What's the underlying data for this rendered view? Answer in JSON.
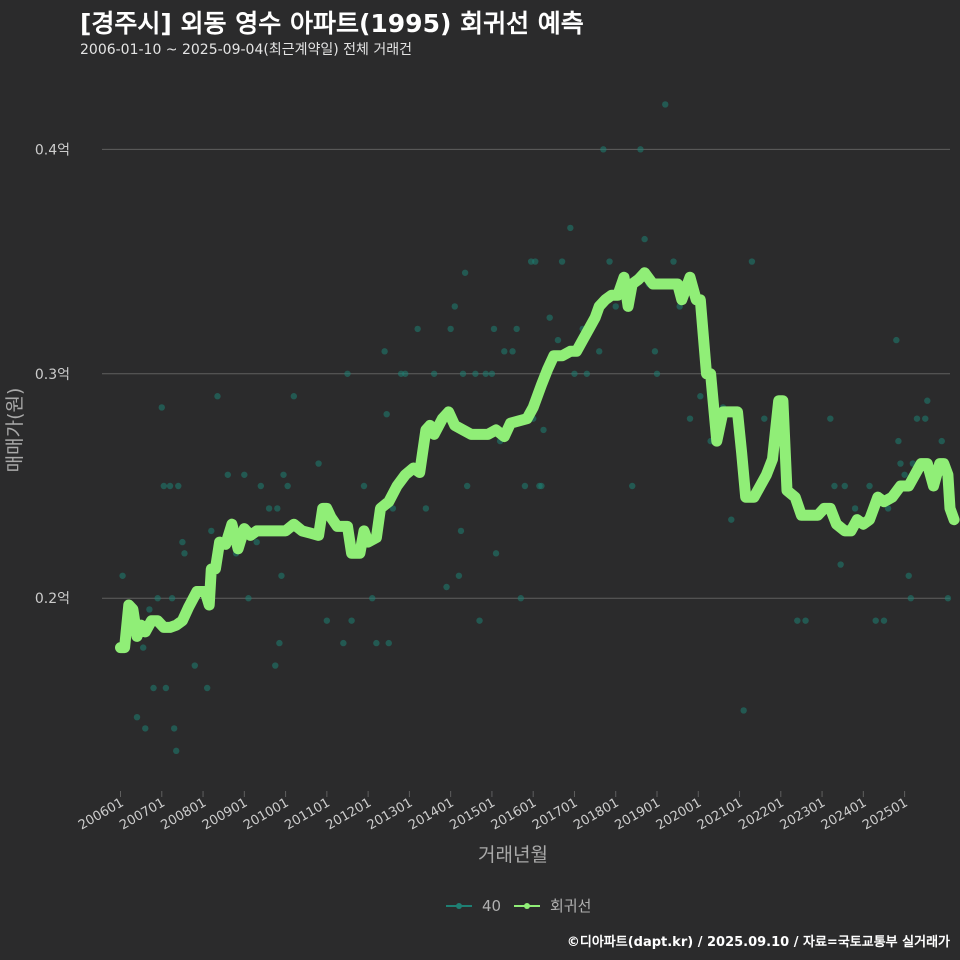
{
  "header": {
    "title": "[경주시] 외동 영수 아파트(1995) 회귀선 예측",
    "subtitle": "2006-01-10 ~ 2025-09-04(최근계약일) 전체 거래건"
  },
  "footer": {
    "caption": "©디아파트(dapt.kr) / 2025.09.10 / 자료=국토교통부 실거래가"
  },
  "colors": {
    "background": "#2b2b2c",
    "grid": "#5f5f5f",
    "points": "#1e7f73",
    "regression": "#90ee77",
    "text": "#cccccc"
  },
  "chart_data": {
    "type": "scatter",
    "xlabel": "거래년월",
    "ylabel": "매매가(원)",
    "yticks": [
      {
        "value": 0.2,
        "label": "0.2억"
      },
      {
        "value": 0.3,
        "label": "0.3억"
      },
      {
        "value": 0.4,
        "label": "0.4억"
      }
    ],
    "ylim": [
      0.115,
      0.43
    ],
    "xlim": [
      2005.6,
      2026.1
    ],
    "xticks": [
      "200601",
      "200701",
      "200801",
      "200901",
      "201001",
      "201101",
      "201201",
      "201301",
      "201401",
      "201501",
      "201601",
      "201701",
      "201801",
      "201901",
      "202001",
      "202101",
      "202201",
      "202301",
      "202401",
      "202501"
    ],
    "legend": {
      "position": "bottom",
      "items": [
        "40",
        "회귀선"
      ]
    },
    "grid": true,
    "series": [
      {
        "name": "40",
        "type": "scatter",
        "points": [
          [
            2006.05,
            0.21
          ],
          [
            2006.15,
            0.19
          ],
          [
            2006.25,
            0.19
          ],
          [
            2006.4,
            0.147
          ],
          [
            2006.55,
            0.178
          ],
          [
            2006.6,
            0.142
          ],
          [
            2006.7,
            0.195
          ],
          [
            2006.8,
            0.16
          ],
          [
            2006.9,
            0.2
          ],
          [
            2007.0,
            0.285
          ],
          [
            2007.05,
            0.25
          ],
          [
            2007.1,
            0.16
          ],
          [
            2007.2,
            0.25
          ],
          [
            2007.25,
            0.2
          ],
          [
            2007.3,
            0.142
          ],
          [
            2007.35,
            0.132
          ],
          [
            2007.4,
            0.25
          ],
          [
            2007.5,
            0.225
          ],
          [
            2007.55,
            0.22
          ],
          [
            2007.8,
            0.17
          ],
          [
            2008.1,
            0.16
          ],
          [
            2008.2,
            0.23
          ],
          [
            2008.35,
            0.29
          ],
          [
            2008.6,
            0.255
          ],
          [
            2008.8,
            0.22
          ],
          [
            2009.0,
            0.255
          ],
          [
            2009.1,
            0.2
          ],
          [
            2009.3,
            0.225
          ],
          [
            2009.4,
            0.25
          ],
          [
            2009.6,
            0.24
          ],
          [
            2009.75,
            0.17
          ],
          [
            2009.8,
            0.24
          ],
          [
            2009.85,
            0.18
          ],
          [
            2009.9,
            0.21
          ],
          [
            2009.95,
            0.255
          ],
          [
            2010.05,
            0.25
          ],
          [
            2010.2,
            0.29
          ],
          [
            2010.4,
            0.23
          ],
          [
            2010.8,
            0.26
          ],
          [
            2011.0,
            0.19
          ],
          [
            2011.4,
            0.18
          ],
          [
            2011.5,
            0.3
          ],
          [
            2011.6,
            0.19
          ],
          [
            2011.9,
            0.25
          ],
          [
            2012.1,
            0.2
          ],
          [
            2012.2,
            0.18
          ],
          [
            2012.4,
            0.31
          ],
          [
            2012.45,
            0.282
          ],
          [
            2012.5,
            0.18
          ],
          [
            2012.6,
            0.24
          ],
          [
            2012.8,
            0.3
          ],
          [
            2012.9,
            0.3
          ],
          [
            2013.2,
            0.32
          ],
          [
            2013.4,
            0.24
          ],
          [
            2013.6,
            0.3
          ],
          [
            2013.9,
            0.205
          ],
          [
            2014.0,
            0.32
          ],
          [
            2014.1,
            0.33
          ],
          [
            2014.2,
            0.21
          ],
          [
            2014.25,
            0.23
          ],
          [
            2014.3,
            0.3
          ],
          [
            2014.35,
            0.345
          ],
          [
            2014.4,
            0.25
          ],
          [
            2014.6,
            0.3
          ],
          [
            2014.7,
            0.19
          ],
          [
            2014.85,
            0.3
          ],
          [
            2015.0,
            0.3
          ],
          [
            2015.05,
            0.32
          ],
          [
            2015.1,
            0.22
          ],
          [
            2015.2,
            0.27
          ],
          [
            2015.3,
            0.31
          ],
          [
            2015.5,
            0.31
          ],
          [
            2015.6,
            0.32
          ],
          [
            2015.7,
            0.2
          ],
          [
            2015.8,
            0.25
          ],
          [
            2015.9,
            0.28
          ],
          [
            2015.95,
            0.35
          ],
          [
            2016.0,
            0.28
          ],
          [
            2016.05,
            0.35
          ],
          [
            2016.1,
            0.29
          ],
          [
            2016.15,
            0.25
          ],
          [
            2016.2,
            0.25
          ],
          [
            2016.25,
            0.275
          ],
          [
            2016.4,
            0.325
          ],
          [
            2016.6,
            0.315
          ],
          [
            2016.7,
            0.35
          ],
          [
            2016.9,
            0.365
          ],
          [
            2017.0,
            0.3
          ],
          [
            2017.2,
            0.32
          ],
          [
            2017.3,
            0.3
          ],
          [
            2017.6,
            0.31
          ],
          [
            2017.7,
            0.4
          ],
          [
            2017.85,
            0.35
          ],
          [
            2018.0,
            0.33
          ],
          [
            2018.4,
            0.25
          ],
          [
            2018.6,
            0.4
          ],
          [
            2018.7,
            0.36
          ],
          [
            2018.8,
            0.34
          ],
          [
            2018.95,
            0.31
          ],
          [
            2019.0,
            0.3
          ],
          [
            2019.2,
            0.42
          ],
          [
            2019.4,
            0.35
          ],
          [
            2019.55,
            0.33
          ],
          [
            2019.8,
            0.28
          ],
          [
            2020.05,
            0.29
          ],
          [
            2020.3,
            0.27
          ],
          [
            2020.6,
            0.285
          ],
          [
            2020.8,
            0.235
          ],
          [
            2021.1,
            0.15
          ],
          [
            2021.3,
            0.35
          ],
          [
            2021.6,
            0.28
          ],
          [
            2021.8,
            0.27
          ],
          [
            2022.1,
            0.28
          ],
          [
            2022.4,
            0.19
          ],
          [
            2022.6,
            0.19
          ],
          [
            2023.2,
            0.28
          ],
          [
            2023.3,
            0.25
          ],
          [
            2023.45,
            0.215
          ],
          [
            2023.55,
            0.25
          ],
          [
            2023.8,
            0.24
          ],
          [
            2024.15,
            0.25
          ],
          [
            2024.3,
            0.19
          ],
          [
            2024.5,
            0.19
          ],
          [
            2024.6,
            0.24
          ],
          [
            2024.8,
            0.315
          ],
          [
            2024.85,
            0.27
          ],
          [
            2024.9,
            0.26
          ],
          [
            2025.0,
            0.255
          ],
          [
            2025.05,
            0.25
          ],
          [
            2025.1,
            0.21
          ],
          [
            2025.15,
            0.2
          ],
          [
            2025.2,
            0.26
          ],
          [
            2025.3,
            0.28
          ],
          [
            2025.4,
            0.26
          ],
          [
            2025.5,
            0.28
          ],
          [
            2025.55,
            0.288
          ],
          [
            2025.9,
            0.27
          ],
          [
            2026.05,
            0.2
          ]
        ]
      },
      {
        "name": "회귀선",
        "type": "line",
        "points": [
          [
            2006.0,
            0.178
          ],
          [
            2006.1,
            0.178
          ],
          [
            2006.2,
            0.197
          ],
          [
            2006.3,
            0.195
          ],
          [
            2006.4,
            0.183
          ],
          [
            2006.5,
            0.188
          ],
          [
            2006.6,
            0.185
          ],
          [
            2006.75,
            0.19
          ],
          [
            2006.9,
            0.19
          ],
          [
            2007.05,
            0.187
          ],
          [
            2007.2,
            0.187
          ],
          [
            2007.35,
            0.188
          ],
          [
            2007.5,
            0.19
          ],
          [
            2007.65,
            0.196
          ],
          [
            2007.85,
            0.203
          ],
          [
            2008.05,
            0.203
          ],
          [
            2008.15,
            0.197
          ],
          [
            2008.2,
            0.213
          ],
          [
            2008.3,
            0.213
          ],
          [
            2008.4,
            0.225
          ],
          [
            2008.55,
            0.224
          ],
          [
            2008.7,
            0.233
          ],
          [
            2008.85,
            0.222
          ],
          [
            2009.0,
            0.231
          ],
          [
            2009.15,
            0.228
          ],
          [
            2009.3,
            0.23
          ],
          [
            2009.5,
            0.23
          ],
          [
            2009.7,
            0.23
          ],
          [
            2009.85,
            0.23
          ],
          [
            2010.0,
            0.23
          ],
          [
            2010.2,
            0.233
          ],
          [
            2010.4,
            0.23
          ],
          [
            2010.6,
            0.229
          ],
          [
            2010.8,
            0.228
          ],
          [
            2010.9,
            0.24
          ],
          [
            2011.0,
            0.24
          ],
          [
            2011.1,
            0.236
          ],
          [
            2011.25,
            0.232
          ],
          [
            2011.5,
            0.232
          ],
          [
            2011.6,
            0.22
          ],
          [
            2011.8,
            0.22
          ],
          [
            2011.9,
            0.23
          ],
          [
            2012.0,
            0.225
          ],
          [
            2012.2,
            0.227
          ],
          [
            2012.3,
            0.24
          ],
          [
            2012.5,
            0.243
          ],
          [
            2012.7,
            0.25
          ],
          [
            2012.9,
            0.255
          ],
          [
            2013.1,
            0.258
          ],
          [
            2013.25,
            0.256
          ],
          [
            2013.4,
            0.275
          ],
          [
            2013.5,
            0.277
          ],
          [
            2013.6,
            0.273
          ],
          [
            2013.8,
            0.28
          ],
          [
            2013.95,
            0.283
          ],
          [
            2014.1,
            0.277
          ],
          [
            2014.3,
            0.275
          ],
          [
            2014.5,
            0.273
          ],
          [
            2014.7,
            0.273
          ],
          [
            2014.9,
            0.273
          ],
          [
            2015.1,
            0.275
          ],
          [
            2015.3,
            0.272
          ],
          [
            2015.45,
            0.278
          ],
          [
            2015.65,
            0.279
          ],
          [
            2015.85,
            0.28
          ],
          [
            2016.0,
            0.285
          ],
          [
            2016.2,
            0.295
          ],
          [
            2016.35,
            0.302
          ],
          [
            2016.5,
            0.308
          ],
          [
            2016.7,
            0.308
          ],
          [
            2016.9,
            0.31
          ],
          [
            2017.05,
            0.31
          ],
          [
            2017.2,
            0.315
          ],
          [
            2017.35,
            0.32
          ],
          [
            2017.5,
            0.325
          ],
          [
            2017.6,
            0.33
          ],
          [
            2017.75,
            0.333
          ],
          [
            2017.9,
            0.335
          ],
          [
            2018.05,
            0.335
          ],
          [
            2018.2,
            0.343
          ],
          [
            2018.3,
            0.33
          ],
          [
            2018.4,
            0.34
          ],
          [
            2018.55,
            0.342
          ],
          [
            2018.7,
            0.345
          ],
          [
            2018.9,
            0.34
          ],
          [
            2019.1,
            0.34
          ],
          [
            2019.3,
            0.34
          ],
          [
            2019.5,
            0.34
          ],
          [
            2019.6,
            0.333
          ],
          [
            2019.8,
            0.343
          ],
          [
            2019.95,
            0.333
          ],
          [
            2020.05,
            0.333
          ],
          [
            2020.2,
            0.3
          ],
          [
            2020.3,
            0.3
          ],
          [
            2020.45,
            0.27
          ],
          [
            2020.6,
            0.283
          ],
          [
            2020.8,
            0.283
          ],
          [
            2020.95,
            0.283
          ],
          [
            2021.05,
            0.265
          ],
          [
            2021.15,
            0.245
          ],
          [
            2021.35,
            0.245
          ],
          [
            2021.5,
            0.25
          ],
          [
            2021.65,
            0.255
          ],
          [
            2021.8,
            0.262
          ],
          [
            2021.95,
            0.288
          ],
          [
            2022.05,
            0.288
          ],
          [
            2022.15,
            0.248
          ],
          [
            2022.35,
            0.245
          ],
          [
            2022.5,
            0.237
          ],
          [
            2022.7,
            0.237
          ],
          [
            2022.9,
            0.237
          ],
          [
            2023.05,
            0.24
          ],
          [
            2023.2,
            0.24
          ],
          [
            2023.35,
            0.233
          ],
          [
            2023.55,
            0.23
          ],
          [
            2023.7,
            0.23
          ],
          [
            2023.85,
            0.235
          ],
          [
            2024.0,
            0.233
          ],
          [
            2024.15,
            0.235
          ],
          [
            2024.35,
            0.245
          ],
          [
            2024.5,
            0.243
          ],
          [
            2024.7,
            0.245
          ],
          [
            2024.9,
            0.25
          ],
          [
            2025.1,
            0.25
          ],
          [
            2025.25,
            0.255
          ],
          [
            2025.4,
            0.26
          ],
          [
            2025.55,
            0.26
          ],
          [
            2025.7,
            0.25
          ],
          [
            2025.85,
            0.26
          ],
          [
            2025.95,
            0.26
          ],
          [
            2026.05,
            0.255
          ],
          [
            2026.1,
            0.24
          ],
          [
            2026.2,
            0.235
          ]
        ]
      }
    ]
  }
}
